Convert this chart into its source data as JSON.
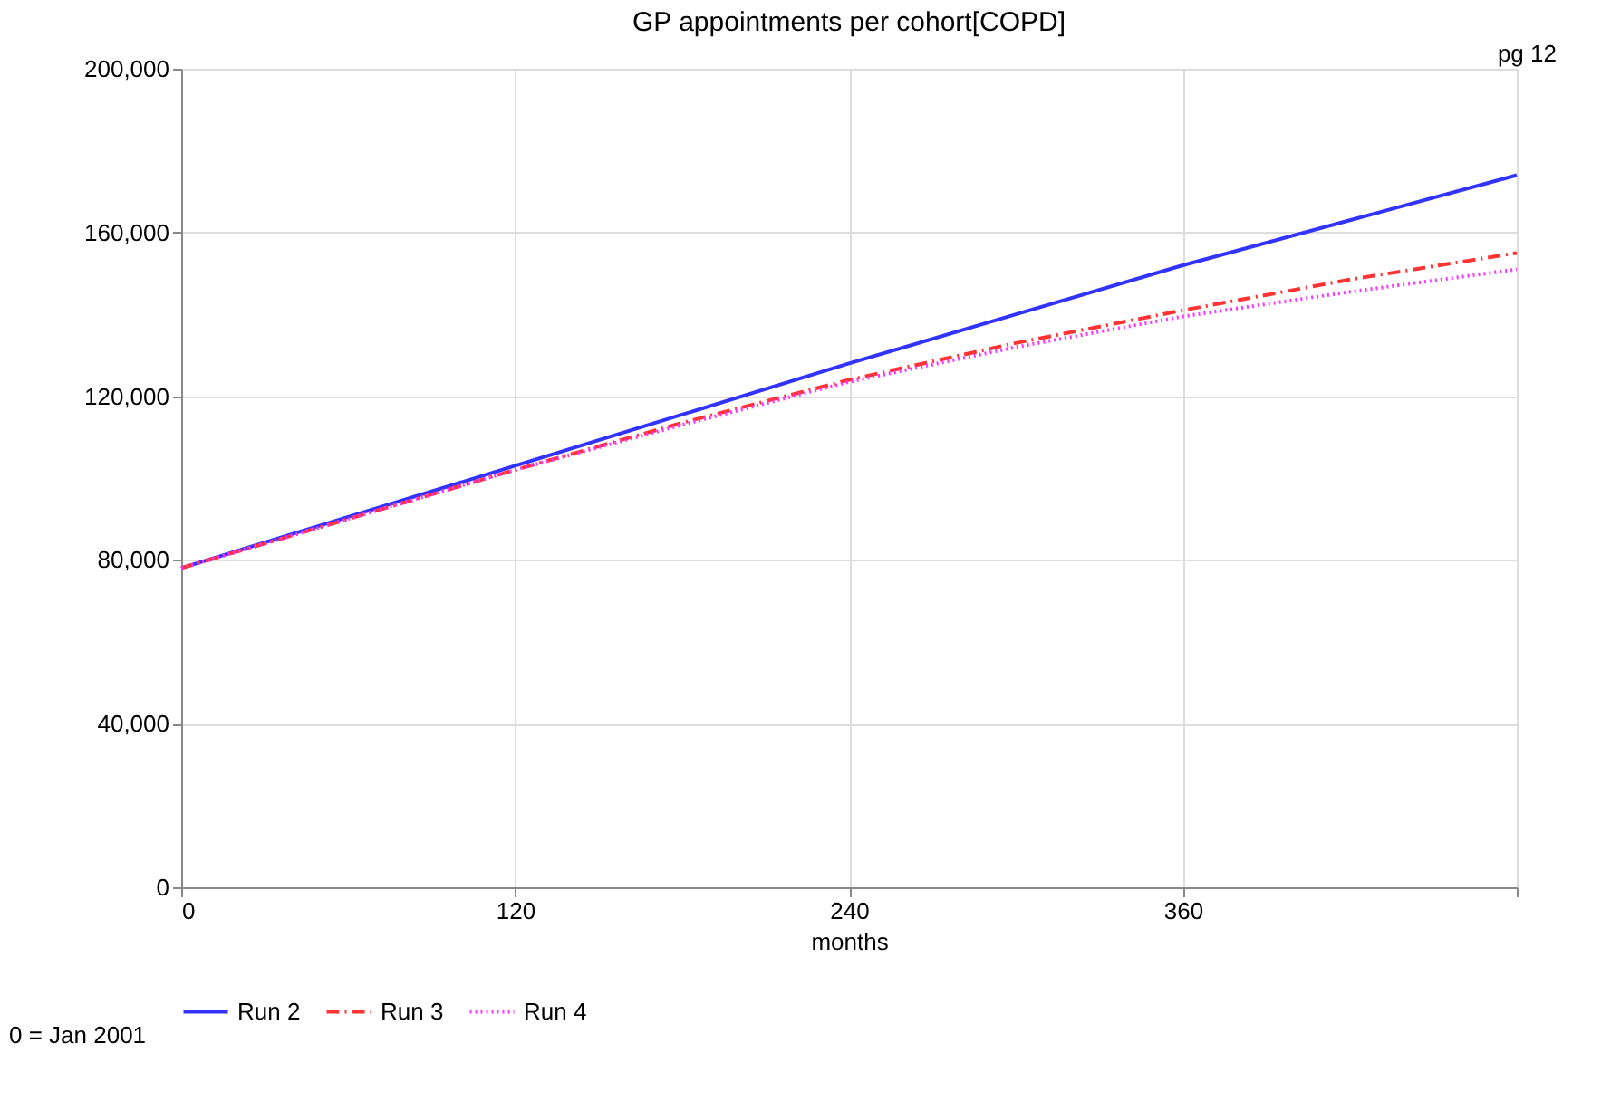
{
  "chart_data": {
    "type": "line",
    "title": "GP appointments per cohort[COPD]",
    "xlabel": "months",
    "x": [
      0,
      60,
      120,
      180,
      240,
      300,
      360,
      420,
      480
    ],
    "series": [
      {
        "name": "Run 2",
        "color": "#3333ff",
        "line_style": "solid",
        "values": [
          78000,
          90500,
          103000,
          115500,
          128000,
          140000,
          152000,
          163000,
          174000
        ]
      },
      {
        "name": "Run 3",
        "color": "#ff3333",
        "line_style": "dashdot",
        "values": [
          78000,
          90000,
          102000,
          113500,
          124000,
          133000,
          141000,
          148500,
          155000
        ]
      },
      {
        "name": "Run 4",
        "color": "#ff33ff",
        "line_style": "dotted",
        "values": [
          78000,
          90000,
          102000,
          113000,
          123500,
          132000,
          139500,
          145500,
          151000
        ]
      }
    ],
    "xlim": [
      0,
      480
    ],
    "xticks": [
      0,
      120,
      240,
      360,
      {
        "value": 480,
        "label": null
      }
    ],
    "ylim": [
      0,
      200000
    ],
    "yticks": [
      0,
      {
        "value": 40000,
        "label": "40,000"
      },
      {
        "value": 80000,
        "label": "80,000"
      },
      {
        "value": 120000,
        "label": "120,000"
      },
      {
        "value": 160000,
        "label": "160,000"
      },
      {
        "value": 200000,
        "label": "200,000"
      }
    ],
    "grid": true,
    "legend": "bottom",
    "annotations": [
      "0 = Jan 2001",
      "pg 12"
    ]
  }
}
